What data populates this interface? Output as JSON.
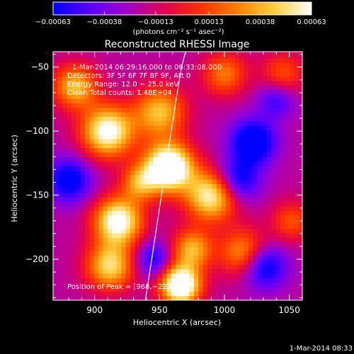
{
  "chart_data": {
    "type": "heatmap",
    "title": "Reconstructed RHESSI Image",
    "xlabel": "Heliocentric X (arcsec)",
    "ylabel": "Heliocentric Y (arcsec)",
    "xlim": [
      868,
      1060
    ],
    "ylim": [
      -232,
      -38
    ],
    "x_ticks": [
      900,
      950,
      1000,
      1050
    ],
    "x_tick_labels": [
      "900",
      "950",
      "1000",
      "1050"
    ],
    "y_ticks": [
      -50,
      -100,
      -150,
      -200
    ],
    "y_tick_labels": [
      "−50",
      "−100",
      "−150",
      "−200"
    ],
    "colorbar": {
      "range": [
        -0.00063,
        0.00063
      ],
      "ticks": [
        -0.00063,
        -0.00038,
        -0.00013,
        0.00013,
        0.00038,
        0.00063
      ],
      "tick_labels": [
        "−0.00063",
        "−0.00038",
        "−0.00013",
        "0.00013",
        "0.00038",
        "0.00063"
      ],
      "units": "(photons cm⁻² s⁻¹ asec⁻²)",
      "colormap": [
        "#0000ff",
        "#5a00ff",
        "#a000c8",
        "#e00050",
        "#ff3000",
        "#ff8000",
        "#ffd040",
        "#ffffff"
      ]
    },
    "annotations": [
      "1-Mar-2014 06:29:16.000  to 06:33:08.000",
      "Detectors: 3F 5F 6F 7F 8F 9F, Att 0",
      "Energy Range: 12.0 − 25.0 keV",
      "Clean     Total counts: 1.48E+04",
      "Position of Peak = [968,−223]"
    ],
    "peak": {
      "x": 968,
      "y": -223
    },
    "limb_curve": {
      "x": [
        939,
        944,
        950,
        956,
        962,
        967,
        970
      ],
      "y": [
        -232,
        -200,
        -160,
        -120,
        -80,
        -50,
        -38
      ]
    },
    "sources": [
      {
        "x": 957,
        "y": -128,
        "amp": 1.0,
        "s": 13
      },
      {
        "x": 966,
        "y": -220,
        "amp": 0.95,
        "s": 11
      },
      {
        "x": 950,
        "y": -85,
        "amp": 0.55,
        "s": 14
      },
      {
        "x": 910,
        "y": -100,
        "amp": 0.78,
        "s": 14
      },
      {
        "x": 885,
        "y": -65,
        "amp": 0.55,
        "s": 12
      },
      {
        "x": 918,
        "y": -170,
        "amp": 0.8,
        "s": 13
      },
      {
        "x": 912,
        "y": -205,
        "amp": 0.62,
        "s": 13
      },
      {
        "x": 990,
        "y": -150,
        "amp": 0.72,
        "s": 14
      },
      {
        "x": 975,
        "y": -192,
        "amp": 0.52,
        "s": 11
      },
      {
        "x": 1015,
        "y": -195,
        "amp": 0.5,
        "s": 13
      },
      {
        "x": 1000,
        "y": -55,
        "amp": 0.4,
        "s": 12
      },
      {
        "x": 1045,
        "y": -55,
        "amp": 0.32,
        "s": 12
      },
      {
        "x": 1052,
        "y": -170,
        "amp": 0.32,
        "s": 11
      },
      {
        "x": 935,
        "y": -140,
        "amp": 0.45,
        "s": 10
      }
    ],
    "dips": [
      {
        "x": 1022,
        "y": -108,
        "amp": 0.55,
        "s": 12
      },
      {
        "x": 1030,
        "y": -205,
        "amp": 0.5,
        "s": 12
      },
      {
        "x": 1010,
        "y": -138,
        "amp": 0.45,
        "s": 12
      },
      {
        "x": 880,
        "y": -138,
        "amp": 0.45,
        "s": 12
      },
      {
        "x": 945,
        "y": -200,
        "amp": 0.35,
        "s": 10
      },
      {
        "x": 1040,
        "y": -75,
        "amp": 0.3,
        "s": 10
      }
    ]
  },
  "footer": {
    "timestamp": "1-Mar-2014 08:33"
  }
}
